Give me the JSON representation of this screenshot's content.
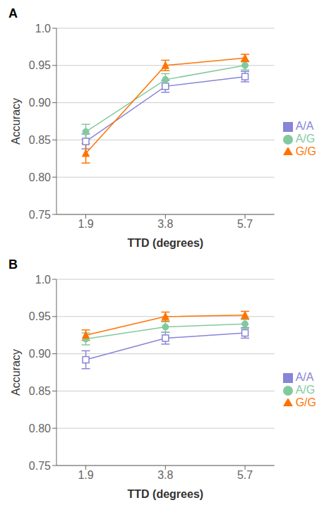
{
  "chart_data": [
    {
      "type": "line",
      "title": "A",
      "x": [
        1.9,
        3.8,
        5.7
      ],
      "xlim": [
        1.2,
        6.4
      ],
      "xticks": [
        1.9,
        3.8,
        5.7
      ],
      "ylim": [
        0.75,
        1.0
      ],
      "yticks": [
        0.75,
        {
          "value": 0.8,
          "label": "0.80"
        },
        0.85,
        {
          "value": 0.9,
          "label": "0.90"
        },
        0.95,
        {
          "value": 1.0,
          "label": "1.0"
        }
      ],
      "xlabel": "TTD (degrees)",
      "ylabel": "Accuracy",
      "grid": true,
      "legend": "right",
      "series": [
        {
          "name": "A/A",
          "marker": "square",
          "values": [
            0.848,
            0.922,
            0.935
          ],
          "yerr": [
            0.01,
            0.008,
            0.007
          ]
        },
        {
          "name": "A/G",
          "marker": "circle",
          "values": [
            0.861,
            0.931,
            0.95
          ],
          "yerr": [
            0.01,
            0.008,
            0.006
          ]
        },
        {
          "name": "G/G",
          "marker": "triangle",
          "values": [
            0.832,
            0.95,
            0.96
          ],
          "yerr": [
            0.013,
            0.007,
            0.005
          ]
        }
      ]
    },
    {
      "type": "line",
      "title": "B",
      "x": [
        1.9,
        3.8,
        5.7
      ],
      "xlim": [
        1.2,
        6.4
      ],
      "xticks": [
        1.9,
        3.8,
        5.7
      ],
      "ylim": [
        0.75,
        1.0
      ],
      "yticks": [
        0.75,
        {
          "value": 0.8,
          "label": "0.80"
        },
        0.85,
        {
          "value": 0.9,
          "label": "0.90"
        },
        0.95,
        {
          "value": 1.0,
          "label": "1.0"
        }
      ],
      "xlabel": "TTD (degrees)",
      "ylabel": "Accuracy",
      "grid": true,
      "legend": "right",
      "series": [
        {
          "name": "A/A",
          "marker": "square",
          "values": [
            0.892,
            0.921,
            0.928
          ],
          "yerr": [
            0.012,
            0.008,
            0.007
          ]
        },
        {
          "name": "A/G",
          "marker": "circle",
          "values": [
            0.92,
            0.936,
            0.94
          ],
          "yerr": [
            0.008,
            0.007,
            0.006
          ]
        },
        {
          "name": "G/G",
          "marker": "triangle",
          "values": [
            0.925,
            0.95,
            0.952
          ],
          "yerr": [
            0.007,
            0.006,
            0.005
          ]
        }
      ]
    }
  ]
}
